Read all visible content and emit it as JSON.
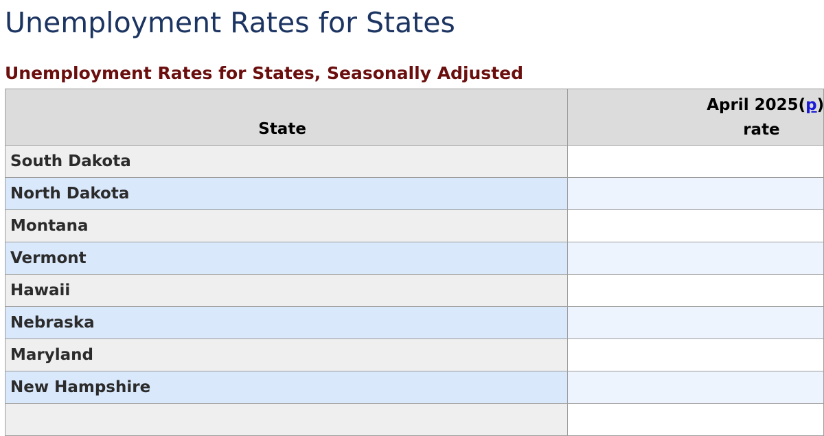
{
  "page": {
    "title": "Unemployment Rates for States"
  },
  "table": {
    "caption": "Unemployment Rates for States, Seasonally Adjusted",
    "headers": {
      "state": "State",
      "period": "April 2025",
      "open_paren": "(",
      "prelim_marker": "p",
      "close_paren": ")",
      "rate": "rate"
    },
    "rows": [
      {
        "state": "South Dakota",
        "rate": ""
      },
      {
        "state": "North Dakota",
        "rate": ""
      },
      {
        "state": "Montana",
        "rate": ""
      },
      {
        "state": "Vermont",
        "rate": ""
      },
      {
        "state": "Hawaii",
        "rate": ""
      },
      {
        "state": "Nebraska",
        "rate": ""
      },
      {
        "state": "Maryland",
        "rate": ""
      },
      {
        "state": "New Hampshire",
        "rate": ""
      },
      {
        "state": "",
        "rate": ""
      }
    ]
  },
  "colors": {
    "title": "#1c3461",
    "caption": "#6b0e0e",
    "link": "#1a1ad6",
    "header_bg": "#dcdcdc",
    "row_odd_bg": "#efefef",
    "row_even_bg": "#d9e8fb"
  }
}
